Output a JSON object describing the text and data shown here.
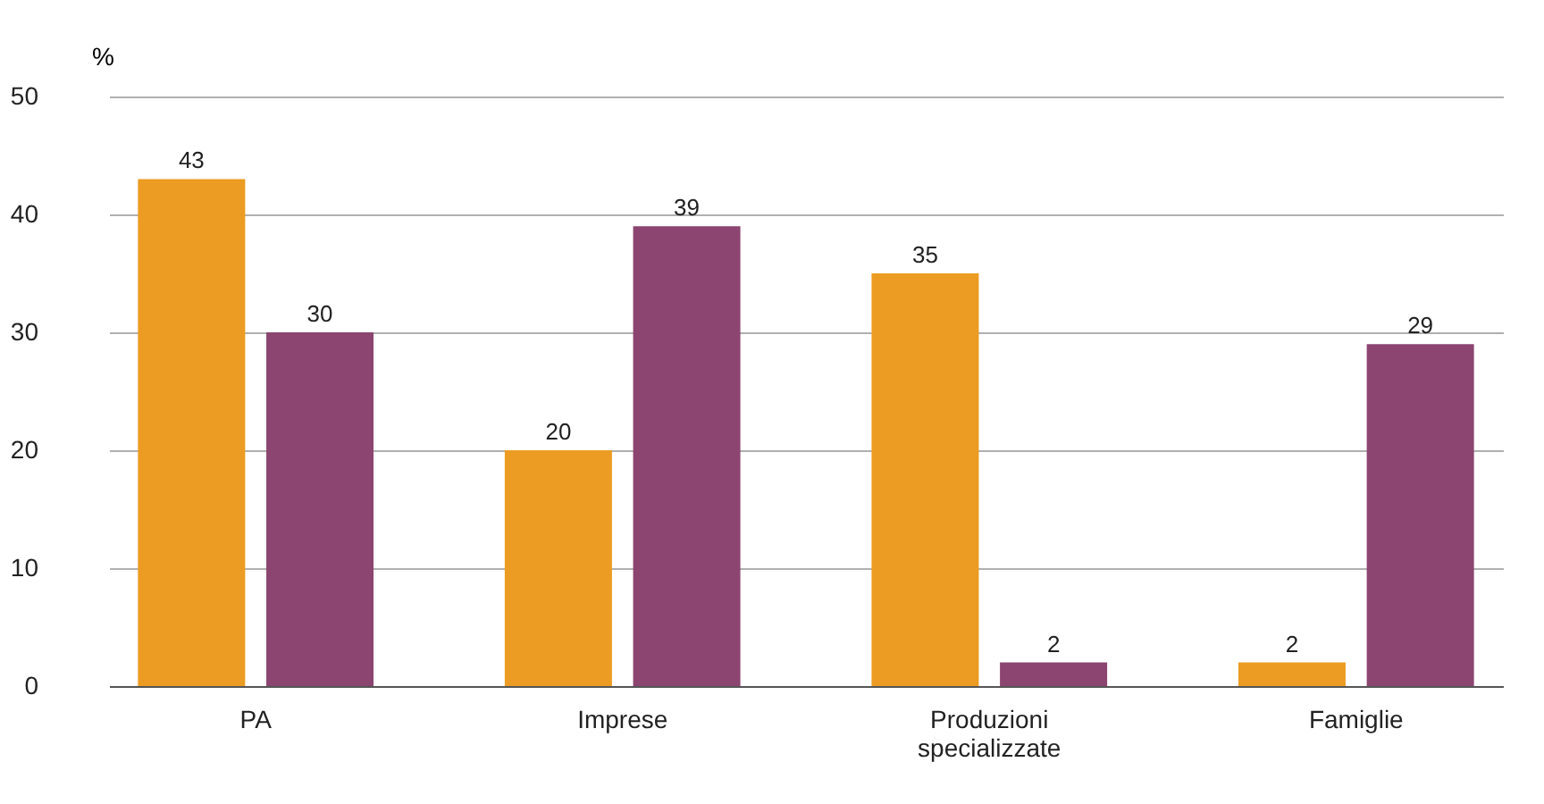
{
  "chart_data": {
    "type": "bar",
    "ylabel": "%",
    "categories": [
      "PA",
      "Imprese",
      "Produzioni specializzate",
      "Famiglie"
    ],
    "series": [
      {
        "color": "#ec9c22",
        "values": [
          43,
          20,
          35,
          2
        ]
      },
      {
        "color": "#8b4570",
        "values": [
          30,
          39,
          2,
          29
        ]
      }
    ],
    "ylim": [
      0,
      50
    ],
    "yticks": [
      0,
      10,
      20,
      30,
      40,
      50
    ],
    "grid": "y",
    "legend": false,
    "data_labels": true
  }
}
